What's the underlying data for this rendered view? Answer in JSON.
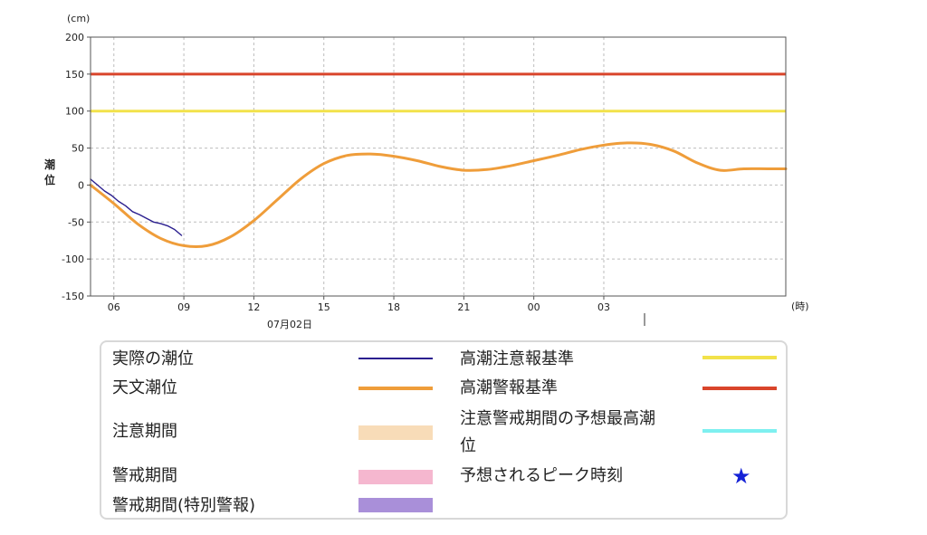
{
  "chart_data": {
    "type": "line",
    "y_unit": "(cm)",
    "x_unit": "(時)",
    "ylabel": "潮位",
    "date_label": "07月02日",
    "ylim": [
      -150,
      200
    ],
    "yticks": [
      200,
      150,
      100,
      50,
      0,
      -50,
      -100,
      -150
    ],
    "xticks": [
      "06",
      "09",
      "12",
      "15",
      "18",
      "21",
      "00",
      "03"
    ],
    "xrange_hours": [
      5,
      34.8
    ],
    "grid": true,
    "reference_lines": [
      {
        "name": "高潮警報基準",
        "value": 150,
        "color": "#d9452b"
      },
      {
        "name": "高潮注意報基準",
        "value": 100,
        "color": "#f2e24a"
      }
    ],
    "series": [
      {
        "name": "天文潮位",
        "color": "#ef9d3a",
        "x": [
          5,
          6,
          7,
          8,
          9,
          10,
          11,
          12,
          13,
          14,
          15,
          16,
          17,
          18,
          19,
          20,
          21,
          22,
          23,
          24,
          25,
          26,
          27,
          28,
          29,
          30,
          31,
          32,
          33,
          34,
          34.8
        ],
        "values": [
          0,
          -25,
          -52,
          -72,
          -82,
          -82,
          -70,
          -48,
          -20,
          8,
          29,
          40,
          42,
          39,
          33,
          25,
          20,
          21,
          26,
          33,
          40,
          48,
          54,
          57,
          55,
          46,
          30,
          20,
          22,
          22,
          22
        ]
      },
      {
        "name": "実際の潮位",
        "color": "#2b1f8f",
        "x": [
          5,
          5.3,
          5.6,
          5.9,
          6.2,
          6.5,
          6.8,
          7.1,
          7.4,
          7.7,
          8.0,
          8.3,
          8.6,
          8.9
        ],
        "values": [
          8,
          0,
          -8,
          -14,
          -22,
          -28,
          -36,
          -40,
          -45,
          -50,
          -52,
          -55,
          -60,
          -68
        ]
      }
    ]
  },
  "legend": {
    "items": [
      {
        "label": "実際の潮位",
        "kind": "line",
        "color": "#2b1f8f"
      },
      {
        "label": "天文潮位",
        "kind": "line",
        "color": "#ef9d3a"
      },
      {
        "label": "注意期間",
        "kind": "box",
        "color": "#f8dcb8"
      },
      {
        "label": "警戒期間",
        "kind": "box",
        "color": "#f5b7cf"
      },
      {
        "label": "警戒期間(特別警報)",
        "kind": "box",
        "color": "#a98fd9"
      },
      {
        "label": "高潮注意報基準",
        "kind": "line",
        "color": "#f2e24a"
      },
      {
        "label": "高潮警報基準",
        "kind": "line",
        "color": "#d9452b"
      },
      {
        "label_line1": "注意警戒期間の予想最高潮",
        "label_line2": "位",
        "kind": "line",
        "color": "#7ef0f0"
      },
      {
        "label": "予想されるピーク時刻",
        "kind": "star",
        "symbol": "★",
        "color": "#1522d6"
      }
    ]
  }
}
